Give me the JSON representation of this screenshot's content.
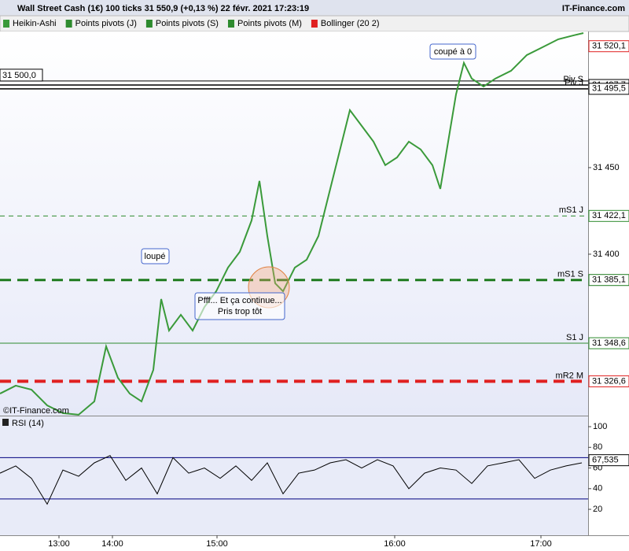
{
  "header": {
    "title": "Wall Street Cash (1€) 100 ticks 31 550,9 (+0,13 %) 22 févr. 2021 17:23:19",
    "brand": "IT-Finance.com"
  },
  "toolbar": [
    "Heikin-Ashi",
    "Points pivots (J)",
    "Points pivots (S)",
    "Points pivots (M)",
    "Bollinger (20 2)"
  ],
  "chart_data": [
    {
      "type": "line",
      "watermark": "©IT-Finance.com",
      "xlim": [
        0,
        374
      ],
      "ylim": [
        31306.8,
        31528.6
      ],
      "xticks": [
        {
          "value": 37.5,
          "label": "13:00"
        },
        {
          "value": 71.5,
          "label": "14:00"
        },
        {
          "value": 138,
          "label": "15:00"
        },
        {
          "value": 251,
          "label": "16:00"
        },
        {
          "value": 344,
          "label": "17:00"
        }
      ],
      "yticks": [
        {
          "value": 31450,
          "label": "31 450"
        },
        {
          "value": 31400,
          "label": "31 400"
        }
      ],
      "series": [
        {
          "name": "Heikin-Ashi",
          "color": "#3a9a3a",
          "x": [
            0,
            10,
            20,
            30,
            40,
            50,
            60,
            67.5,
            75,
            82.5,
            90,
            97.5,
            102.5,
            107.5,
            115,
            122.5,
            130,
            137.5,
            145,
            152.5,
            160,
            165,
            170,
            175,
            180,
            187.5,
            195,
            202.5,
            207.5,
            215,
            222.5,
            230,
            237.5,
            245,
            252.5,
            260,
            267.5,
            275,
            280,
            285,
            290,
            295,
            300,
            307.5,
            315,
            325,
            335,
            345,
            355,
            365,
            371
          ],
          "values": [
            31319.5,
            31324.1,
            31321.8,
            31312.7,
            31308.2,
            31307.3,
            31315.0,
            31346.8,
            31328.6,
            31319.5,
            31315.0,
            31333.2,
            31374.1,
            31355.9,
            31365.0,
            31355.9,
            31369.5,
            31378.6,
            31392.3,
            31401.4,
            31419.5,
            31442.3,
            31410.5,
            31383.2,
            31378.6,
            31392.3,
            31396.8,
            31410.5,
            31428.6,
            31455.9,
            31483.2,
            31474.1,
            31465.0,
            31451.4,
            31455.9,
            31465.0,
            31460.5,
            31451.4,
            31437.7,
            31465.0,
            31492.3,
            31510.5,
            31501.4,
            31496.8,
            31501.4,
            31505.9,
            31515.0,
            31519.5,
            31524.1,
            31526.4,
            31527.7
          ]
        }
      ],
      "levels": [
        {
          "name": "Piv S",
          "value": 31497.7,
          "value_label": "31 497,7",
          "color": "#000000",
          "style": "solid",
          "width": 1.5
        },
        {
          "name": "Piv J",
          "value": 31495.5,
          "value_label": "31 495,5",
          "color": "#000000",
          "style": "solid",
          "width": 1.5
        },
        {
          "name": "mS1 J",
          "value": 31422.1,
          "value_label": "31 422,1",
          "color": "#2e8b2e",
          "style": "dashed",
          "width": 1
        },
        {
          "name": "mS1 S",
          "value": 31385.1,
          "value_label": "31 385,1",
          "color": "#1e7a1e",
          "style": "dashed",
          "width": 3
        },
        {
          "name": "S1 J",
          "value": 31348.6,
          "value_label": "31 348,6",
          "color": "#2e8b2e",
          "style": "solid",
          "width": 1
        },
        {
          "name": "mR2 M",
          "value": 31326.6,
          "value_label": "31 326,6",
          "color": "#e02020",
          "style": "dashed",
          "width": 4
        }
      ],
      "cursor_value": 31500,
      "cursor_label": "31 500,0",
      "last_value": 31520.1,
      "last_value_label": "31 520,1",
      "annotations": [
        "loupé",
        "coupé à 0",
        "Pfff... Et ça continue...",
        "Pris trop tôt"
      ]
    },
    {
      "type": "line",
      "title": "RSI (14)",
      "xlim": [
        0,
        374
      ],
      "ylim": [
        -5.1,
        110.7
      ],
      "yticks": [
        20,
        40,
        60,
        80,
        100
      ],
      "levels": [
        {
          "value": 70,
          "color": "#000080"
        },
        {
          "value": 30,
          "color": "#000080"
        }
      ],
      "last_value": 67.535,
      "last_value_label": "67,535",
      "series": [
        {
          "name": "RSI (14)",
          "color": "#000000",
          "x": [
            0,
            10,
            20,
            30,
            40,
            50,
            60,
            70,
            80,
            90,
            100,
            110,
            120,
            130,
            140,
            150,
            160,
            170,
            180,
            190,
            200,
            210,
            220,
            230,
            240,
            250,
            260,
            270,
            280,
            290,
            300,
            310,
            320,
            330,
            340,
            350,
            360,
            370
          ],
          "values": [
            55,
            62,
            50,
            25,
            58,
            52,
            65,
            72,
            48,
            60,
            35,
            70,
            55,
            60,
            50,
            62,
            48,
            65,
            35,
            55,
            58,
            65,
            68,
            60,
            68,
            62,
            40,
            55,
            60,
            58,
            45,
            62,
            65,
            68,
            50,
            58,
            62,
            65
          ]
        }
      ]
    }
  ]
}
